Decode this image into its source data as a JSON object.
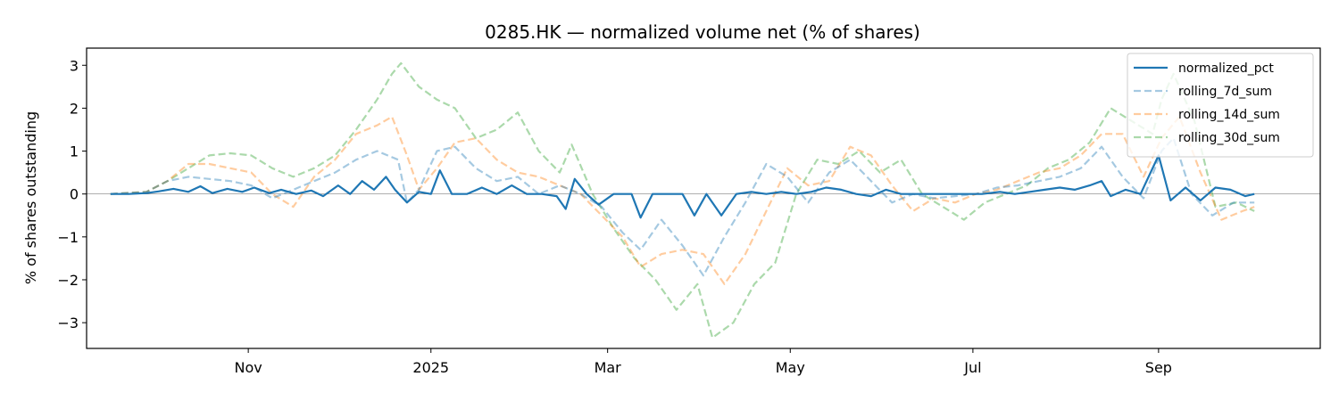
{
  "chart_data": {
    "type": "line",
    "title": "0285.HK — normalized volume net (% of shares)",
    "xlabel": "",
    "ylabel": "% of shares outstanding",
    "xlim": [
      "2024-09-08",
      "2025-10-25"
    ],
    "ylim": [
      -3.6,
      3.4
    ],
    "y_ticks": [
      -3,
      -2,
      -1,
      0,
      1,
      2,
      3
    ],
    "x_ticks": [
      {
        "date": "2024-11-01",
        "label": "Nov"
      },
      {
        "date": "2025-01-01",
        "label": "2025"
      },
      {
        "date": "2025-03-01",
        "label": "Mar"
      },
      {
        "date": "2025-05-01",
        "label": "May"
      },
      {
        "date": "2025-07-01",
        "label": "Jul"
      },
      {
        "date": "2025-09-01",
        "label": "Sep"
      }
    ],
    "zero_line": true,
    "grid": false,
    "legend_position": "top-right",
    "series": [
      {
        "name": "normalized_pct",
        "color": "#1f77b4",
        "style": "solid",
        "points": [
          [
            "2024-09-16",
            0.0
          ],
          [
            "2024-09-22",
            0.0
          ],
          [
            "2024-09-28",
            0.02
          ],
          [
            "2024-10-02",
            0.06
          ],
          [
            "2024-10-07",
            0.12
          ],
          [
            "2024-10-12",
            0.05
          ],
          [
            "2024-10-16",
            0.18
          ],
          [
            "2024-10-20",
            0.02
          ],
          [
            "2024-10-25",
            0.12
          ],
          [
            "2024-10-30",
            0.05
          ],
          [
            "2024-11-03",
            0.15
          ],
          [
            "2024-11-08",
            0.02
          ],
          [
            "2024-11-12",
            0.1
          ],
          [
            "2024-11-17",
            0.0
          ],
          [
            "2024-11-22",
            0.08
          ],
          [
            "2024-11-26",
            -0.05
          ],
          [
            "2024-12-01",
            0.2
          ],
          [
            "2024-12-05",
            0.0
          ],
          [
            "2024-12-09",
            0.3
          ],
          [
            "2024-12-13",
            0.1
          ],
          [
            "2024-12-17",
            0.4
          ],
          [
            "2024-12-20",
            0.1
          ],
          [
            "2024-12-24",
            -0.2
          ],
          [
            "2024-12-28",
            0.05
          ],
          [
            "2025-01-01",
            0.0
          ],
          [
            "2025-01-04",
            0.55
          ],
          [
            "2025-01-08",
            0.0
          ],
          [
            "2025-01-13",
            0.0
          ],
          [
            "2025-01-18",
            0.15
          ],
          [
            "2025-01-23",
            0.0
          ],
          [
            "2025-01-28",
            0.2
          ],
          [
            "2025-02-02",
            0.0
          ],
          [
            "2025-02-07",
            0.0
          ],
          [
            "2025-02-12",
            -0.05
          ],
          [
            "2025-02-15",
            -0.35
          ],
          [
            "2025-02-18",
            0.35
          ],
          [
            "2025-02-22",
            0.0
          ],
          [
            "2025-02-26",
            -0.25
          ],
          [
            "2025-03-03",
            0.0
          ],
          [
            "2025-03-09",
            0.0
          ],
          [
            "2025-03-12",
            -0.55
          ],
          [
            "2025-03-16",
            0.0
          ],
          [
            "2025-03-21",
            0.0
          ],
          [
            "2025-03-26",
            0.0
          ],
          [
            "2025-03-30",
            -0.5
          ],
          [
            "2025-04-03",
            0.0
          ],
          [
            "2025-04-08",
            -0.5
          ],
          [
            "2025-04-13",
            0.0
          ],
          [
            "2025-04-18",
            0.05
          ],
          [
            "2025-04-23",
            0.0
          ],
          [
            "2025-04-28",
            0.05
          ],
          [
            "2025-05-03",
            0.0
          ],
          [
            "2025-05-08",
            0.05
          ],
          [
            "2025-05-13",
            0.15
          ],
          [
            "2025-05-18",
            0.1
          ],
          [
            "2025-05-23",
            0.0
          ],
          [
            "2025-05-28",
            -0.05
          ],
          [
            "2025-06-02",
            0.1
          ],
          [
            "2025-06-07",
            0.0
          ],
          [
            "2025-06-13",
            0.0
          ],
          [
            "2025-06-20",
            0.0
          ],
          [
            "2025-06-27",
            0.0
          ],
          [
            "2025-07-04",
            0.0
          ],
          [
            "2025-07-10",
            0.05
          ],
          [
            "2025-07-15",
            0.0
          ],
          [
            "2025-07-20",
            0.05
          ],
          [
            "2025-07-25",
            0.1
          ],
          [
            "2025-07-30",
            0.15
          ],
          [
            "2025-08-04",
            0.1
          ],
          [
            "2025-08-09",
            0.2
          ],
          [
            "2025-08-13",
            0.3
          ],
          [
            "2025-08-16",
            -0.05
          ],
          [
            "2025-08-21",
            0.1
          ],
          [
            "2025-08-26",
            0.0
          ],
          [
            "2025-09-01",
            0.9
          ],
          [
            "2025-09-05",
            -0.15
          ],
          [
            "2025-09-10",
            0.15
          ],
          [
            "2025-09-15",
            -0.15
          ],
          [
            "2025-09-20",
            0.15
          ],
          [
            "2025-09-25",
            0.1
          ],
          [
            "2025-09-30",
            -0.05
          ],
          [
            "2025-10-03",
            0.0
          ]
        ]
      },
      {
        "name": "rolling_7d_sum",
        "color": "#1f77b4",
        "opacity": 0.4,
        "style": "dashed",
        "points": [
          [
            "2024-09-16",
            0.0
          ],
          [
            "2024-09-28",
            0.05
          ],
          [
            "2024-10-05",
            0.3
          ],
          [
            "2024-10-12",
            0.4
          ],
          [
            "2024-10-19",
            0.35
          ],
          [
            "2024-10-26",
            0.3
          ],
          [
            "2024-11-02",
            0.2
          ],
          [
            "2024-11-09",
            -0.1
          ],
          [
            "2024-11-16",
            0.1
          ],
          [
            "2024-11-23",
            0.3
          ],
          [
            "2024-11-30",
            0.5
          ],
          [
            "2024-12-07",
            0.8
          ],
          [
            "2024-12-14",
            1.0
          ],
          [
            "2024-12-21",
            0.8
          ],
          [
            "2024-12-24",
            -0.2
          ],
          [
            "2024-12-28",
            0.1
          ],
          [
            "2025-01-03",
            1.0
          ],
          [
            "2025-01-09",
            1.1
          ],
          [
            "2025-01-16",
            0.6
          ],
          [
            "2025-01-23",
            0.3
          ],
          [
            "2025-01-30",
            0.4
          ],
          [
            "2025-02-06",
            0.0
          ],
          [
            "2025-02-13",
            0.2
          ],
          [
            "2025-02-20",
            0.0
          ],
          [
            "2025-02-27",
            -0.3
          ],
          [
            "2025-03-06",
            -0.9
          ],
          [
            "2025-03-12",
            -1.3
          ],
          [
            "2025-03-19",
            -0.6
          ],
          [
            "2025-03-26",
            -1.2
          ],
          [
            "2025-04-02",
            -1.9
          ],
          [
            "2025-04-09",
            -1.0
          ],
          [
            "2025-04-16",
            -0.2
          ],
          [
            "2025-04-23",
            0.7
          ],
          [
            "2025-04-30",
            0.4
          ],
          [
            "2025-05-07",
            -0.2
          ],
          [
            "2025-05-14",
            0.5
          ],
          [
            "2025-05-21",
            0.8
          ],
          [
            "2025-05-28",
            0.3
          ],
          [
            "2025-06-04",
            -0.2
          ],
          [
            "2025-06-11",
            0.0
          ],
          [
            "2025-06-18",
            -0.1
          ],
          [
            "2025-06-25",
            -0.05
          ],
          [
            "2025-07-02",
            0.0
          ],
          [
            "2025-07-09",
            0.15
          ],
          [
            "2025-07-16",
            0.2
          ],
          [
            "2025-07-23",
            0.3
          ],
          [
            "2025-07-30",
            0.4
          ],
          [
            "2025-08-06",
            0.6
          ],
          [
            "2025-08-13",
            1.1
          ],
          [
            "2025-08-20",
            0.4
          ],
          [
            "2025-08-27",
            -0.1
          ],
          [
            "2025-09-02",
            1.0
          ],
          [
            "2025-09-06",
            1.3
          ],
          [
            "2025-09-12",
            0.0
          ],
          [
            "2025-09-19",
            -0.5
          ],
          [
            "2025-09-26",
            -0.2
          ],
          [
            "2025-10-03",
            -0.2
          ]
        ]
      },
      {
        "name": "rolling_14d_sum",
        "color": "#ff7f0e",
        "opacity": 0.4,
        "style": "dashed",
        "points": [
          [
            "2024-09-16",
            0.0
          ],
          [
            "2024-09-28",
            0.05
          ],
          [
            "2024-10-05",
            0.3
          ],
          [
            "2024-10-12",
            0.7
          ],
          [
            "2024-10-19",
            0.7
          ],
          [
            "2024-10-26",
            0.6
          ],
          [
            "2024-11-02",
            0.5
          ],
          [
            "2024-11-09",
            0.0
          ],
          [
            "2024-11-16",
            -0.3
          ],
          [
            "2024-11-23",
            0.4
          ],
          [
            "2024-11-30",
            0.8
          ],
          [
            "2024-12-07",
            1.4
          ],
          [
            "2024-12-14",
            1.6
          ],
          [
            "2024-12-19",
            1.8
          ],
          [
            "2024-12-24",
            0.9
          ],
          [
            "2024-12-28",
            0.1
          ],
          [
            "2025-01-03",
            0.6
          ],
          [
            "2025-01-09",
            1.2
          ],
          [
            "2025-01-16",
            1.3
          ],
          [
            "2025-01-23",
            0.8
          ],
          [
            "2025-01-30",
            0.5
          ],
          [
            "2025-02-06",
            0.4
          ],
          [
            "2025-02-13",
            0.2
          ],
          [
            "2025-02-20",
            0.0
          ],
          [
            "2025-02-27",
            -0.5
          ],
          [
            "2025-03-06",
            -1.0
          ],
          [
            "2025-03-12",
            -1.7
          ],
          [
            "2025-03-19",
            -1.4
          ],
          [
            "2025-03-26",
            -1.3
          ],
          [
            "2025-04-02",
            -1.4
          ],
          [
            "2025-04-09",
            -2.1
          ],
          [
            "2025-04-16",
            -1.4
          ],
          [
            "2025-04-23",
            -0.4
          ],
          [
            "2025-04-30",
            0.6
          ],
          [
            "2025-05-07",
            0.2
          ],
          [
            "2025-05-14",
            0.3
          ],
          [
            "2025-05-21",
            1.1
          ],
          [
            "2025-05-28",
            0.9
          ],
          [
            "2025-06-04",
            0.2
          ],
          [
            "2025-06-11",
            -0.4
          ],
          [
            "2025-06-18",
            -0.1
          ],
          [
            "2025-06-25",
            -0.2
          ],
          [
            "2025-07-02",
            0.0
          ],
          [
            "2025-07-09",
            0.1
          ],
          [
            "2025-07-16",
            0.3
          ],
          [
            "2025-07-23",
            0.5
          ],
          [
            "2025-07-30",
            0.6
          ],
          [
            "2025-08-06",
            0.9
          ],
          [
            "2025-08-13",
            1.4
          ],
          [
            "2025-08-20",
            1.4
          ],
          [
            "2025-08-27",
            0.4
          ],
          [
            "2025-09-02",
            1.3
          ],
          [
            "2025-09-08",
            1.8
          ],
          [
            "2025-09-15",
            0.5
          ],
          [
            "2025-09-22",
            -0.6
          ],
          [
            "2025-09-29",
            -0.4
          ],
          [
            "2025-10-03",
            -0.3
          ]
        ]
      },
      {
        "name": "rolling_30d_sum",
        "color": "#2ca02c",
        "opacity": 0.4,
        "style": "dashed",
        "points": [
          [
            "2024-09-16",
            0.0
          ],
          [
            "2024-09-28",
            0.05
          ],
          [
            "2024-10-05",
            0.3
          ],
          [
            "2024-10-12",
            0.6
          ],
          [
            "2024-10-19",
            0.9
          ],
          [
            "2024-10-26",
            0.95
          ],
          [
            "2024-11-02",
            0.9
          ],
          [
            "2024-11-09",
            0.6
          ],
          [
            "2024-11-16",
            0.4
          ],
          [
            "2024-11-23",
            0.6
          ],
          [
            "2024-11-30",
            0.9
          ],
          [
            "2024-12-07",
            1.5
          ],
          [
            "2024-12-14",
            2.2
          ],
          [
            "2024-12-19",
            2.8
          ],
          [
            "2024-12-22",
            3.05
          ],
          [
            "2024-12-28",
            2.5
          ],
          [
            "2025-01-03",
            2.2
          ],
          [
            "2025-01-09",
            2.0
          ],
          [
            "2025-01-16",
            1.3
          ],
          [
            "2025-01-23",
            1.5
          ],
          [
            "2025-01-30",
            1.9
          ],
          [
            "2025-02-06",
            1.0
          ],
          [
            "2025-02-13",
            0.5
          ],
          [
            "2025-02-17",
            1.15
          ],
          [
            "2025-02-24",
            0.0
          ],
          [
            "2025-03-03",
            -0.8
          ],
          [
            "2025-03-10",
            -1.5
          ],
          [
            "2025-03-17",
            -2.0
          ],
          [
            "2025-03-24",
            -2.7
          ],
          [
            "2025-03-31",
            -2.1
          ],
          [
            "2025-04-05",
            -3.35
          ],
          [
            "2025-04-12",
            -3.0
          ],
          [
            "2025-04-19",
            -2.1
          ],
          [
            "2025-04-26",
            -1.6
          ],
          [
            "2025-05-03",
            0.0
          ],
          [
            "2025-05-10",
            0.8
          ],
          [
            "2025-05-17",
            0.7
          ],
          [
            "2025-05-24",
            1.0
          ],
          [
            "2025-05-31",
            0.5
          ],
          [
            "2025-06-07",
            0.8
          ],
          [
            "2025-06-14",
            0.0
          ],
          [
            "2025-06-21",
            -0.3
          ],
          [
            "2025-06-28",
            -0.6
          ],
          [
            "2025-07-05",
            -0.2
          ],
          [
            "2025-07-12",
            0.0
          ],
          [
            "2025-07-19",
            0.2
          ],
          [
            "2025-07-26",
            0.6
          ],
          [
            "2025-08-02",
            0.8
          ],
          [
            "2025-08-09",
            1.2
          ],
          [
            "2025-08-16",
            2.0
          ],
          [
            "2025-08-23",
            1.7
          ],
          [
            "2025-08-30",
            1.4
          ],
          [
            "2025-09-02",
            2.2
          ],
          [
            "2025-09-06",
            2.8
          ],
          [
            "2025-09-13",
            1.7
          ],
          [
            "2025-09-20",
            -0.3
          ],
          [
            "2025-09-27",
            -0.2
          ],
          [
            "2025-10-03",
            -0.4
          ]
        ]
      }
    ]
  }
}
